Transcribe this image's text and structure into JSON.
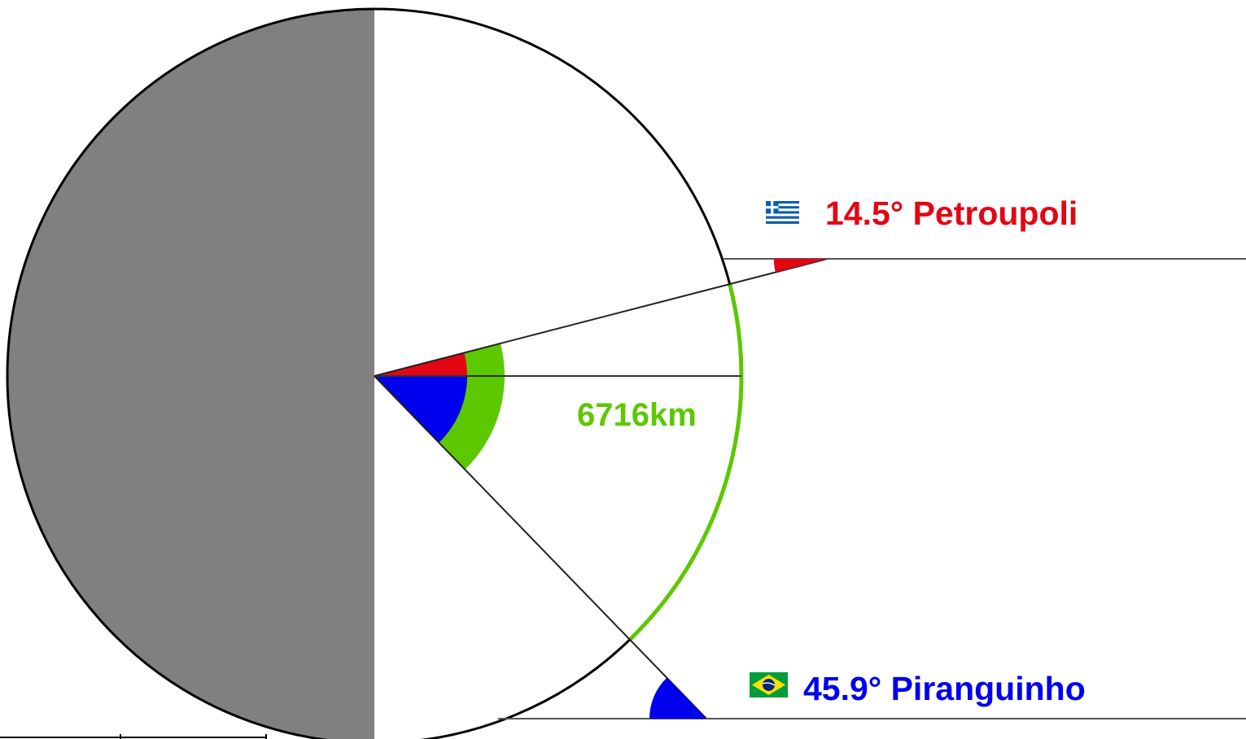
{
  "colors": {
    "earth_dark_side": "#808080",
    "earth_light_side": "#ffffff",
    "outline": "#000000",
    "petroupoli": "#e30613",
    "piranguinho": "#0000ee",
    "arc_distance": "#5cc800",
    "greece_flag_blue": "#0d5eaf",
    "brazil_flag_green": "#009c3b",
    "brazil_flag_yellow": "#ffdf00",
    "brazil_flag_blue": "#002776"
  },
  "locations": {
    "petroupoli": {
      "angle_deg": 14.5,
      "label": "14.5° Petroupoli",
      "flag": "greece-flag-icon"
    },
    "piranguinho": {
      "angle_deg": 45.9,
      "label": "45.9° Piranguinho",
      "flag": "brazil-flag-icon"
    }
  },
  "distance": {
    "label": "6716km"
  }
}
